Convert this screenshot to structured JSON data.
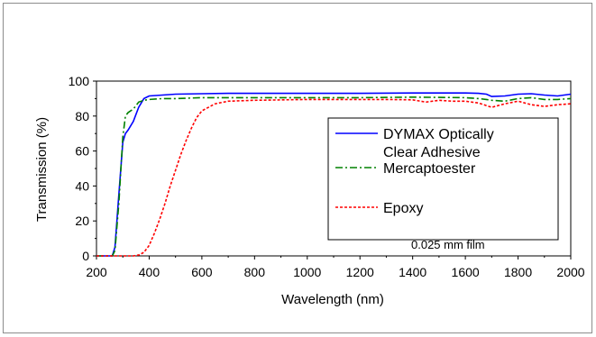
{
  "chart_data": {
    "type": "line",
    "title": "",
    "xlabel": "Wavelength (nm)",
    "ylabel": "Transmission (%)",
    "xlim": [
      200,
      2000
    ],
    "ylim": [
      0,
      100
    ],
    "xticks": [
      200,
      400,
      600,
      800,
      1000,
      1200,
      1400,
      1600,
      1800,
      2000
    ],
    "yticks": [
      0,
      20,
      40,
      60,
      80,
      100
    ],
    "grid": false,
    "legend_position": "right",
    "annotation": "0.025 mm film",
    "series": [
      {
        "name": "DYMAX Optically Clear Adhesive",
        "legend_lines": [
          "DYMAX Optically",
          "Clear Adhesive"
        ],
        "color": "#0000ff",
        "style": "solid",
        "x": [
          200,
          260,
          270,
          285,
          300,
          310,
          320,
          340,
          360,
          380,
          400,
          450,
          500,
          600,
          700,
          800,
          1000,
          1200,
          1400,
          1600,
          1650,
          1680,
          1700,
          1750,
          1800,
          1850,
          1900,
          1950,
          2000
        ],
        "y": [
          0,
          0,
          5,
          35,
          65,
          70,
          72,
          77,
          85,
          90,
          91.5,
          92,
          92.5,
          92.8,
          93,
          93,
          93,
          93,
          93.2,
          93.2,
          93,
          92.5,
          91.2,
          91.5,
          92.5,
          92.8,
          92,
          91.5,
          92.5
        ]
      },
      {
        "name": "Mercaptoester",
        "legend_lines": [
          "Mercaptoester"
        ],
        "color": "#008000",
        "style": "dashdot",
        "x": [
          200,
          260,
          270,
          285,
          300,
          310,
          320,
          340,
          360,
          380,
          400,
          450,
          500,
          600,
          800,
          1000,
          1200,
          1400,
          1600,
          1650,
          1680,
          1700,
          1750,
          1800,
          1850,
          1900,
          1950,
          2000
        ],
        "y": [
          0,
          0,
          3,
          30,
          68,
          80,
          82,
          84,
          88,
          89,
          89.5,
          90,
          90,
          90.5,
          90.5,
          90.5,
          90.5,
          90.8,
          90.5,
          90,
          89.5,
          89,
          88.5,
          90,
          90.5,
          89.5,
          89.5,
          90
        ]
      },
      {
        "name": "Epoxy",
        "legend_lines": [
          "Epoxy"
        ],
        "color": "#ff0000",
        "style": "dotted",
        "x": [
          200,
          300,
          340,
          360,
          380,
          400,
          420,
          440,
          460,
          480,
          500,
          520,
          540,
          560,
          580,
          600,
          650,
          700,
          800,
          1000,
          1200,
          1300,
          1400,
          1450,
          1500,
          1550,
          1600,
          1650,
          1700,
          1750,
          1800,
          1850,
          1900,
          1950,
          2000
        ],
        "y": [
          0,
          0,
          0,
          0.5,
          2,
          6,
          13,
          21,
          30,
          40,
          49,
          58,
          66,
          73,
          79,
          83,
          87,
          88.5,
          89,
          89.5,
          89.5,
          89.5,
          89.3,
          88,
          89,
          88.5,
          88.5,
          87.5,
          85,
          87,
          88.5,
          86.5,
          85.5,
          86.5,
          87
        ]
      }
    ]
  }
}
